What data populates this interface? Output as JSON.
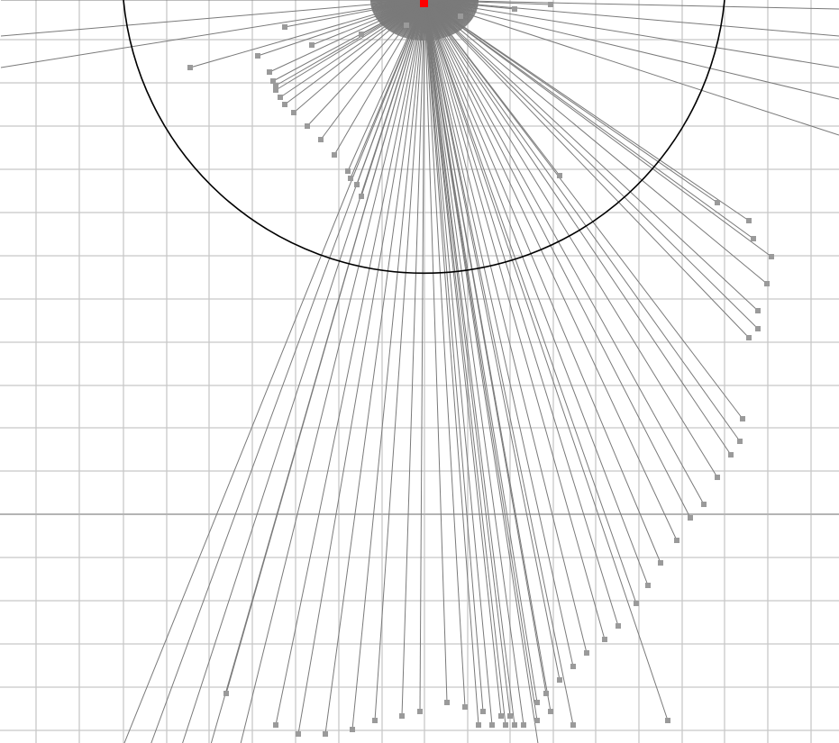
{
  "scene": {
    "kind": "laser-scan-visualization",
    "colors": {
      "background": "#ffffff",
      "grid_minor": "#c8c8c8",
      "grid_major": "#b4b4b4",
      "ray": "#7a7a7a",
      "hit_point": "#9a9a9a",
      "robot": "#ff0000",
      "range_circle": "#000000"
    },
    "icons": {
      "robot": "robot-marker-icon",
      "hit": "scan-hit-marker-icon"
    },
    "scan_hits": [
      [
        -260,
        75
      ],
      [
        -185,
        62
      ],
      [
        -125,
        50
      ],
      [
        -70,
        38
      ],
      [
        -20,
        28
      ],
      [
        40,
        18
      ],
      [
        100,
        10
      ],
      [
        140,
        5
      ],
      [
        -155,
        30
      ],
      [
        -165,
        95
      ],
      [
        -168,
        90
      ],
      [
        -172,
        80
      ],
      [
        -165,
        100
      ],
      [
        -160,
        108
      ],
      [
        -155,
        116
      ],
      [
        -145,
        125
      ],
      [
        -130,
        140
      ],
      [
        -115,
        155
      ],
      [
        -100,
        172
      ],
      [
        -85,
        190
      ],
      [
        -75,
        205
      ],
      [
        -70,
        218
      ],
      [
        -82,
        198
      ],
      [
        165,
        805
      ],
      [
        95,
        795
      ],
      [
        85,
        795
      ],
      [
        65,
        790
      ],
      [
        45,
        785
      ],
      [
        25,
        780
      ],
      [
        -5,
        790
      ],
      [
        -25,
        795
      ],
      [
        -55,
        800
      ],
      [
        -80,
        810
      ],
      [
        -110,
        815
      ],
      [
        -140,
        815
      ],
      [
        -165,
        805
      ],
      [
        -220,
        770
      ],
      [
        150,
        195
      ],
      [
        325,
        225
      ],
      [
        360,
        245
      ],
      [
        365,
        265
      ],
      [
        385,
        285
      ],
      [
        380,
        315
      ],
      [
        370,
        345
      ],
      [
        370,
        365
      ],
      [
        360,
        375
      ],
      [
        353,
        465
      ],
      [
        350,
        490
      ],
      [
        340,
        505
      ],
      [
        325,
        530
      ],
      [
        310,
        560
      ],
      [
        295,
        575
      ],
      [
        280,
        600
      ],
      [
        262,
        625
      ],
      [
        248,
        650
      ],
      [
        235,
        670
      ],
      [
        215,
        695
      ],
      [
        200,
        710
      ],
      [
        180,
        725
      ],
      [
        165,
        740
      ],
      [
        150,
        755
      ],
      [
        135,
        770
      ],
      [
        125,
        780
      ],
      [
        132,
        865
      ],
      [
        270,
        800
      ],
      [
        140,
        790
      ],
      [
        125,
        800
      ],
      [
        110,
        805
      ],
      [
        100,
        805
      ],
      [
        90,
        805
      ],
      [
        75,
        805
      ],
      [
        60,
        805
      ]
    ],
    "far_rays": [
      [
        -470,
        -65
      ],
      [
        -470,
        -30
      ],
      [
        -470,
        0
      ],
      [
        -470,
        40
      ],
      [
        -470,
        75
      ],
      [
        460,
        10
      ],
      [
        460,
        40
      ],
      [
        460,
        75
      ],
      [
        460,
        110
      ],
      [
        460,
        150
      ]
    ]
  }
}
